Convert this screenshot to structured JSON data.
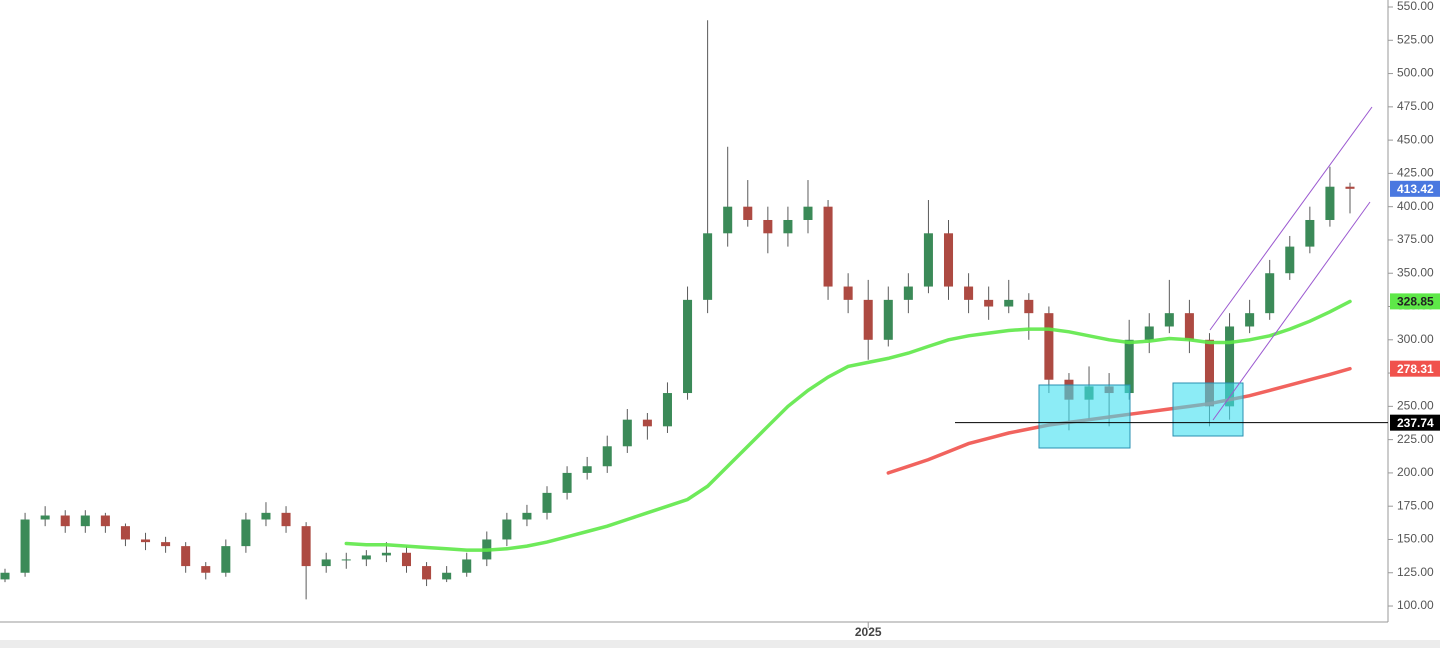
{
  "chart_data": {
    "type": "candlestick",
    "categories": [
      null,
      null,
      null,
      null,
      null,
      null,
      null,
      null,
      null,
      null,
      null,
      null,
      null,
      null,
      null,
      null,
      null,
      null,
      null,
      null,
      null,
      null,
      null,
      null,
      null,
      null,
      null,
      null,
      null,
      null,
      null,
      null,
      null,
      null,
      null,
      null,
      null,
      null,
      null,
      null,
      null,
      null,
      null,
      "2025",
      null,
      null,
      null,
      null,
      null,
      null,
      null,
      null,
      null,
      null,
      null,
      null,
      null,
      null,
      null,
      null,
      null,
      null,
      null,
      null,
      null,
      null,
      null,
      null
    ],
    "open": [
      120,
      125,
      165,
      168,
      160,
      168,
      160,
      150,
      148,
      145,
      130,
      125,
      145,
      165,
      170,
      160,
      130,
      135,
      135,
      138,
      140,
      130,
      120,
      125,
      135,
      150,
      165,
      170,
      185,
      200,
      205,
      220,
      240,
      235,
      260,
      330,
      380,
      400,
      390,
      380,
      390,
      400,
      340,
      330,
      300,
      330,
      340,
      380,
      340,
      330,
      325,
      330,
      320,
      270,
      255,
      265,
      260,
      300,
      310,
      320,
      300,
      250,
      310,
      320,
      350,
      370,
      390,
      415
    ],
    "high": [
      128,
      170,
      175,
      172,
      172,
      170,
      162,
      155,
      152,
      148,
      133,
      150,
      170,
      178,
      175,
      163,
      140,
      140,
      142,
      148,
      145,
      133,
      130,
      140,
      156,
      170,
      176,
      190,
      205,
      212,
      228,
      248,
      245,
      268,
      340,
      540,
      445,
      420,
      400,
      400,
      420,
      405,
      350,
      345,
      340,
      350,
      405,
      390,
      350,
      340,
      345,
      335,
      325,
      275,
      280,
      275,
      315,
      320,
      345,
      330,
      305,
      320,
      330,
      360,
      378,
      400,
      430,
      418
    ],
    "low": [
      118,
      122,
      160,
      155,
      155,
      155,
      145,
      142,
      140,
      125,
      120,
      122,
      140,
      160,
      155,
      105,
      125,
      128,
      130,
      133,
      125,
      115,
      118,
      122,
      130,
      145,
      160,
      165,
      180,
      195,
      200,
      215,
      225,
      230,
      255,
      320,
      370,
      385,
      365,
      370,
      380,
      330,
      320,
      285,
      295,
      320,
      335,
      330,
      320,
      315,
      320,
      300,
      260,
      232,
      240,
      235,
      255,
      290,
      305,
      290,
      235,
      240,
      305,
      315,
      345,
      365,
      385,
      395
    ],
    "close": [
      125,
      165,
      168,
      160,
      168,
      160,
      150,
      148,
      145,
      130,
      125,
      145,
      165,
      170,
      160,
      130,
      135,
      135,
      138,
      140,
      130,
      120,
      125,
      135,
      150,
      165,
      170,
      185,
      200,
      205,
      220,
      240,
      235,
      260,
      330,
      380,
      400,
      390,
      380,
      390,
      400,
      340,
      330,
      300,
      330,
      340,
      380,
      340,
      330,
      325,
      330,
      320,
      270,
      255,
      265,
      260,
      300,
      310,
      320,
      300,
      250,
      310,
      320,
      350,
      370,
      390,
      415,
      413.42
    ],
    "up_color": "#3b8a58",
    "down_color": "#ad4a42",
    "last_price_color": "#4a78e0",
    "series": [
      {
        "color": "#5ee848",
        "values": [
          null,
          null,
          null,
          null,
          null,
          null,
          null,
          null,
          null,
          null,
          null,
          null,
          null,
          null,
          null,
          null,
          null,
          147,
          146,
          146,
          145,
          144,
          143,
          142,
          142,
          143,
          145,
          148,
          152,
          156,
          160,
          165,
          170,
          175,
          180,
          190,
          205,
          220,
          235,
          250,
          262,
          272,
          280,
          283,
          286,
          290,
          295,
          300,
          303,
          305,
          307,
          308,
          308,
          306,
          303,
          300,
          298,
          299,
          301,
          300,
          298,
          298,
          300,
          303,
          308,
          314,
          321,
          328.85
        ]
      },
      {
        "color": "#f0524c",
        "values": [
          null,
          null,
          null,
          null,
          null,
          null,
          null,
          null,
          null,
          null,
          null,
          null,
          null,
          null,
          null,
          null,
          null,
          null,
          null,
          null,
          null,
          null,
          null,
          null,
          null,
          null,
          null,
          null,
          null,
          null,
          null,
          null,
          null,
          null,
          null,
          null,
          null,
          null,
          null,
          null,
          null,
          null,
          null,
          null,
          200,
          205,
          210,
          216,
          222,
          226,
          230,
          233,
          236,
          238,
          240,
          242,
          244,
          246,
          248,
          250,
          252,
          255,
          258,
          262,
          266,
          270,
          274,
          278.31
        ]
      }
    ],
    "hline": 237.74,
    "ylim": [
      88,
      550
    ],
    "yticks": [
      {
        "value": 100,
        "label": "100.00"
      },
      {
        "value": 125,
        "label": "125.00"
      },
      {
        "value": 150,
        "label": "150.00"
      },
      {
        "value": 175,
        "label": "175.00"
      },
      {
        "value": 200,
        "label": "200.00"
      },
      {
        "value": 225,
        "label": "225.00"
      },
      {
        "value": 250,
        "label": "250.00"
      },
      {
        "value": 275,
        "label": "275.00"
      },
      {
        "value": 300,
        "label": "300.00"
      },
      {
        "value": 325,
        "label": "325.00"
      },
      {
        "value": 350,
        "label": "350.00"
      },
      {
        "value": 375,
        "label": "375.00"
      },
      {
        "value": 400,
        "label": "400.00"
      },
      {
        "value": 425,
        "label": "425.00"
      },
      {
        "value": 450,
        "label": "450.00"
      },
      {
        "value": 475,
        "label": "475.00"
      },
      {
        "value": 500,
        "label": "500.00"
      },
      {
        "value": 525,
        "label": "525.00"
      },
      {
        "value": 550,
        "label": "550.00"
      }
    ]
  }
}
